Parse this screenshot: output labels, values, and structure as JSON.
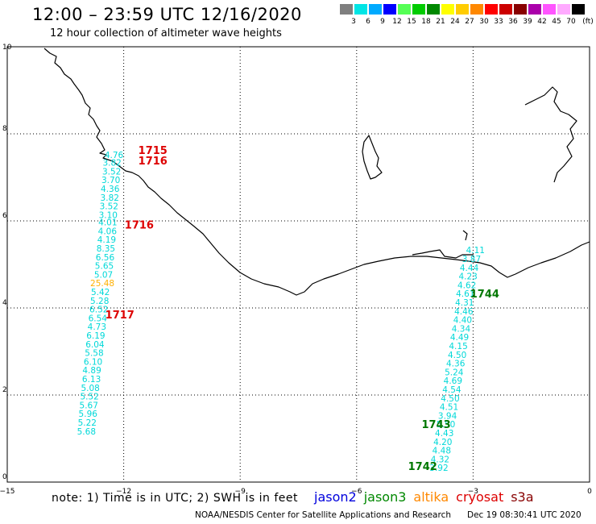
{
  "header": {
    "title": "12:00 – 23:59 UTC 12/16/2020",
    "subtitle": "12 hour collection of altimeter wave heights"
  },
  "legend": {
    "unit": "(ft)",
    "bins": [
      {
        "label": "3",
        "color": "#7f7f7f"
      },
      {
        "label": "6",
        "color": "#00e5e5"
      },
      {
        "label": "9",
        "color": "#00aaff"
      },
      {
        "label": "12",
        "color": "#0000ff"
      },
      {
        "label": "15",
        "color": "#55ff55"
      },
      {
        "label": "18",
        "color": "#00cc00"
      },
      {
        "label": "21",
        "color": "#008800"
      },
      {
        "label": "24",
        "color": "#ffff00"
      },
      {
        "label": "27",
        "color": "#ffcc00"
      },
      {
        "label": "30",
        "color": "#ff8800"
      },
      {
        "label": "33",
        "color": "#ff0000"
      },
      {
        "label": "36",
        "color": "#cc0000"
      },
      {
        "label": "39",
        "color": "#880000"
      },
      {
        "label": "42",
        "color": "#aa00aa"
      },
      {
        "label": "45",
        "color": "#ff55ff"
      },
      {
        "label": "70",
        "color": "#ffaaff"
      },
      {
        "label": "",
        "color": "#000000"
      }
    ]
  },
  "map": {
    "lon_ticks": [
      "−15",
      "−12",
      "−9",
      "−6",
      "−3",
      "0"
    ],
    "lat_ticks": [
      "0",
      "2",
      "4",
      "6",
      "8",
      "10"
    ]
  },
  "tracks": [
    {
      "satellite": "cryosat",
      "color": "#00d8d8",
      "points": [
        {
          "lat": 7.52,
          "lon": -12.25,
          "swh": "4.76"
        },
        {
          "lat": 7.34,
          "lon": -12.3,
          "swh": "3.82"
        },
        {
          "lat": 7.14,
          "lon": -12.31,
          "swh": "3.52"
        },
        {
          "lat": 6.94,
          "lon": -12.33,
          "swh": "3.70"
        },
        {
          "lat": 6.74,
          "lon": -12.35,
          "swh": "4.36"
        },
        {
          "lat": 6.54,
          "lon": -12.36,
          "swh": "3.82"
        },
        {
          "lat": 6.34,
          "lon": -12.38,
          "swh": "3.52"
        },
        {
          "lat": 6.14,
          "lon": -12.4,
          "swh": "3.10"
        },
        {
          "lat": 5.97,
          "lon": -12.41,
          "swh": "4.01"
        },
        {
          "lat": 5.77,
          "lon": -12.42,
          "swh": "4.06"
        },
        {
          "lat": 5.57,
          "lon": -12.44,
          "swh": "4.19"
        },
        {
          "lat": 5.37,
          "lon": -12.46,
          "swh": "8.35"
        },
        {
          "lat": 5.17,
          "lon": -12.48,
          "swh": "6.56"
        },
        {
          "lat": 4.97,
          "lon": -12.5,
          "swh": "5.65"
        },
        {
          "lat": 4.77,
          "lon": -12.52,
          "swh": "5.07"
        },
        {
          "lat": 4.57,
          "lon": -12.55,
          "swh": "25.48",
          "color": "#ffb000"
        },
        {
          "lat": 4.37,
          "lon": -12.6,
          "swh": "5.42"
        },
        {
          "lat": 4.17,
          "lon": -12.62,
          "swh": "5.28"
        },
        {
          "lat": 3.97,
          "lon": -12.64,
          "swh": "6.52"
        },
        {
          "lat": 3.77,
          "lon": -12.67,
          "swh": "6.54"
        },
        {
          "lat": 3.57,
          "lon": -12.69,
          "swh": "4.73"
        },
        {
          "lat": 3.37,
          "lon": -12.72,
          "swh": "6.19"
        },
        {
          "lat": 3.17,
          "lon": -12.74,
          "swh": "6.04"
        },
        {
          "lat": 2.97,
          "lon": -12.76,
          "swh": "5.58"
        },
        {
          "lat": 2.77,
          "lon": -12.79,
          "swh": "6.10"
        },
        {
          "lat": 2.57,
          "lon": -12.82,
          "swh": "4.89"
        },
        {
          "lat": 2.37,
          "lon": -12.83,
          "swh": "6.13"
        },
        {
          "lat": 2.17,
          "lon": -12.86,
          "swh": "5.08"
        },
        {
          "lat": 1.97,
          "lon": -12.88,
          "swh": "5.52"
        },
        {
          "lat": 1.77,
          "lon": -12.9,
          "swh": "5.67"
        },
        {
          "lat": 1.57,
          "lon": -12.92,
          "swh": "5.96"
        },
        {
          "lat": 1.37,
          "lon": -12.94,
          "swh": "5.22"
        },
        {
          "lat": 1.17,
          "lon": -12.96,
          "swh": "5.68"
        }
      ],
      "time_labels": [
        {
          "lat": 7.63,
          "lon": -11.25,
          "text": "1715"
        },
        {
          "lat": 7.39,
          "lon": -11.25,
          "text": "1716"
        },
        {
          "lat": 5.92,
          "lon": -11.6,
          "text": "1716"
        },
        {
          "lat": 3.85,
          "lon": -12.1,
          "text": "1717"
        }
      ],
      "time_color": "#dd0000"
    },
    {
      "satellite": "jason3",
      "color": "#00d8d8",
      "points": [
        {
          "lat": 5.33,
          "lon": -2.94,
          "swh": "4.11"
        },
        {
          "lat": 5.13,
          "lon": -3.04,
          "swh": "3.87"
        },
        {
          "lat": 4.93,
          "lon": -3.1,
          "swh": "4.44"
        },
        {
          "lat": 4.73,
          "lon": -3.13,
          "swh": "4.23"
        },
        {
          "lat": 4.53,
          "lon": -3.16,
          "swh": "4.62"
        },
        {
          "lat": 4.33,
          "lon": -3.2,
          "swh": "4.61"
        },
        {
          "lat": 4.13,
          "lon": -3.22,
          "swh": "4.31"
        },
        {
          "lat": 3.93,
          "lon": -3.24,
          "swh": "4.46"
        },
        {
          "lat": 3.73,
          "lon": -3.27,
          "swh": "4.40"
        },
        {
          "lat": 3.53,
          "lon": -3.31,
          "swh": "4.34"
        },
        {
          "lat": 3.33,
          "lon": -3.35,
          "swh": "4.49"
        },
        {
          "lat": 3.13,
          "lon": -3.38,
          "swh": "4.15"
        },
        {
          "lat": 2.93,
          "lon": -3.41,
          "swh": "4.50"
        },
        {
          "lat": 2.73,
          "lon": -3.45,
          "swh": "4.36"
        },
        {
          "lat": 2.53,
          "lon": -3.49,
          "swh": "5.24"
        },
        {
          "lat": 2.33,
          "lon": -3.52,
          "swh": "4.69"
        },
        {
          "lat": 2.13,
          "lon": -3.55,
          "swh": "4.54"
        },
        {
          "lat": 1.93,
          "lon": -3.59,
          "swh": "4.50"
        },
        {
          "lat": 1.73,
          "lon": -3.62,
          "swh": "4.51"
        },
        {
          "lat": 1.53,
          "lon": -3.66,
          "swh": "3.94"
        },
        {
          "lat": 1.33,
          "lon": -3.7,
          "swh": "5.50"
        },
        {
          "lat": 1.13,
          "lon": -3.74,
          "swh": "4.43"
        },
        {
          "lat": 0.93,
          "lon": -3.78,
          "swh": "4.20"
        },
        {
          "lat": 0.73,
          "lon": -3.81,
          "swh": "4.48"
        },
        {
          "lat": 0.53,
          "lon": -3.85,
          "swh": "4.32"
        },
        {
          "lat": 0.33,
          "lon": -3.88,
          "swh": "3.92"
        }
      ],
      "time_labels": [
        {
          "lat": 4.33,
          "lon": -2.7,
          "text": "1744"
        },
        {
          "lat": 1.33,
          "lon": -3.95,
          "text": "1743"
        },
        {
          "lat": 0.37,
          "lon": -4.3,
          "text": "1742"
        }
      ],
      "time_color": "#007700"
    }
  ],
  "footer": {
    "note": "note:  1) Time is in UTC;  2) SWH is in feet",
    "satellites": [
      {
        "name": "jason2",
        "color": "#0000dd"
      },
      {
        "name": "jason3",
        "color": "#008800"
      },
      {
        "name": "altika",
        "color": "#ff8800"
      },
      {
        "name": "cryosat",
        "color": "#dd0000"
      },
      {
        "name": "s3a",
        "color": "#880000"
      }
    ],
    "credit": "NOAA/NESDIS Center for Satellite Applications and Research",
    "timestamp": "Dec 19 08:30:41 UTC 2020"
  }
}
